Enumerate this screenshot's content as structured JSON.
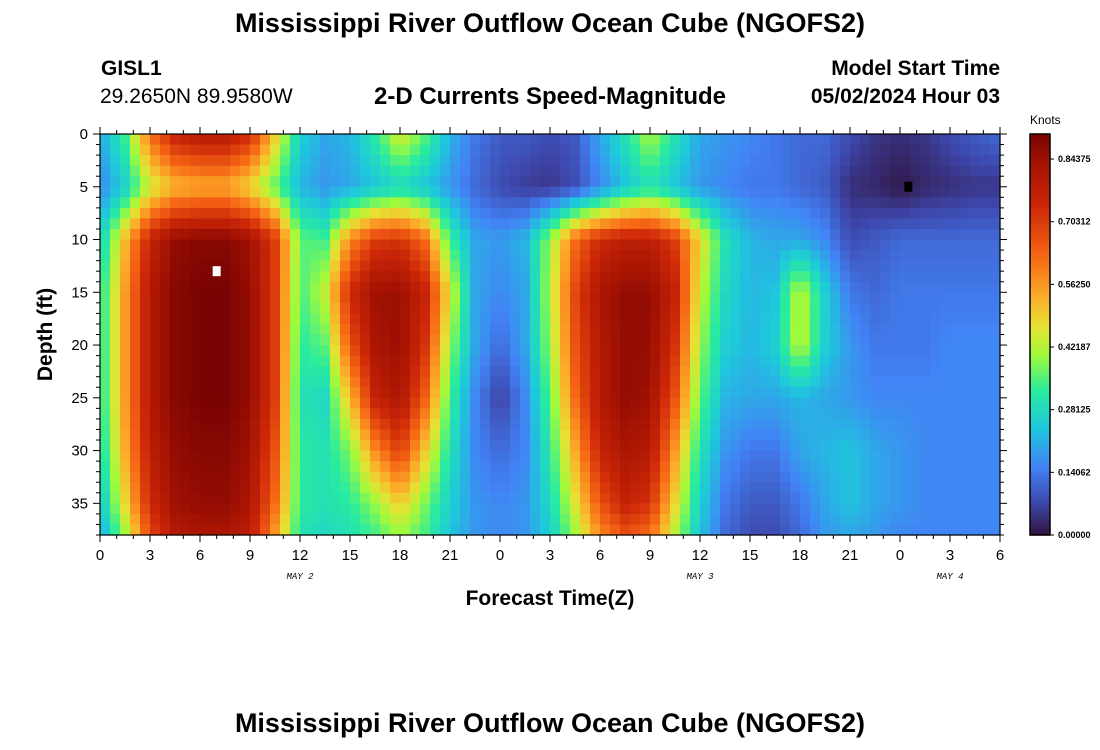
{
  "header": {
    "title": "Mississippi River Outflow Ocean Cube (NGOFS2)",
    "station_id": "GISL1",
    "station_coords": "29.2650N  89.9580W",
    "chart_title": "2-D Currents Speed-Magnitude",
    "model_start_label": "Model Start Time",
    "model_start_value": "05/02/2024 Hour 03"
  },
  "footer": {
    "title": "Mississippi River Outflow Ocean Cube (NGOFS2)"
  },
  "chart_data": {
    "type": "heatmap",
    "xlabel": "Forecast Time(Z)",
    "ylabel": "Depth (ft)",
    "x_unit_hours_range": [
      0,
      54
    ],
    "x_tick_labels": [
      "0",
      "3",
      "6",
      "9",
      "12",
      "15",
      "18",
      "21",
      "0",
      "3",
      "6",
      "9",
      "12",
      "15",
      "18",
      "21",
      "0",
      "3",
      "6"
    ],
    "x_tick_hours": [
      0,
      3,
      6,
      9,
      12,
      15,
      18,
      21,
      24,
      27,
      30,
      33,
      36,
      39,
      42,
      45,
      48,
      51,
      54
    ],
    "day_labels": [
      {
        "label": "MAY 2",
        "hour": 12
      },
      {
        "label": "MAY 3",
        "hour": 36
      },
      {
        "label": "MAY 4",
        "hour": 51
      }
    ],
    "ylim": [
      0,
      38
    ],
    "y_ticks": [
      0,
      5,
      10,
      15,
      20,
      25,
      30,
      35
    ],
    "y_tick_labels": [
      "0",
      "5",
      "10",
      "15",
      "20",
      "25",
      "30",
      "35"
    ],
    "colorbar": {
      "label": "Knots",
      "range": [
        0,
        0.9
      ],
      "ticks": [
        0.0,
        0.140625,
        0.28125,
        0.421875,
        0.5625,
        0.703125,
        0.84375
      ],
      "tick_labels": [
        "0.00000",
        "0.14062",
        "0.28125",
        "0.42187",
        "0.56250",
        "0.70312",
        "0.84375"
      ]
    },
    "markers": [
      {
        "name": "max-marker",
        "hour": 7,
        "depth": 13,
        "color": "#ffffff"
      },
      {
        "name": "min-marker",
        "hour": 48.5,
        "depth": 5,
        "color": "#000000"
      }
    ],
    "speed_knots": {
      "hours": [
        0,
        1.5,
        3,
        4.5,
        6,
        7.5,
        9,
        10.5,
        12,
        13.5,
        15,
        16.5,
        18,
        19.5,
        21,
        22.5,
        24,
        25.5,
        27,
        28.5,
        30,
        31.5,
        33,
        34.5,
        36,
        37.5,
        39,
        40.5,
        42,
        43.5,
        45,
        46.5,
        48,
        49.5,
        51,
        52.5,
        54
      ],
      "depths": [
        0,
        5,
        10,
        15,
        20,
        25,
        30,
        35,
        38
      ],
      "values": [
        [
          0.2,
          0.34,
          0.62,
          0.76,
          0.8,
          0.8,
          0.74,
          0.5,
          0.26,
          0.2,
          0.22,
          0.32,
          0.46,
          0.36,
          0.22,
          0.14,
          0.1,
          0.1,
          0.08,
          0.1,
          0.2,
          0.3,
          0.42,
          0.3,
          0.2,
          0.18,
          0.16,
          0.14,
          0.12,
          0.12,
          0.08,
          0.05,
          0.04,
          0.05,
          0.08,
          0.1,
          0.12
        ],
        [
          0.16,
          0.26,
          0.44,
          0.52,
          0.54,
          0.54,
          0.48,
          0.36,
          0.22,
          0.18,
          0.2,
          0.24,
          0.28,
          0.24,
          0.18,
          0.12,
          0.08,
          0.06,
          0.05,
          0.08,
          0.16,
          0.24,
          0.3,
          0.24,
          0.18,
          0.16,
          0.14,
          0.14,
          0.12,
          0.1,
          0.04,
          0.03,
          0.01,
          0.03,
          0.04,
          0.05,
          0.05
        ],
        [
          0.26,
          0.52,
          0.76,
          0.86,
          0.88,
          0.88,
          0.84,
          0.7,
          0.36,
          0.34,
          0.58,
          0.7,
          0.72,
          0.62,
          0.34,
          0.2,
          0.18,
          0.22,
          0.4,
          0.62,
          0.74,
          0.78,
          0.78,
          0.7,
          0.48,
          0.3,
          0.22,
          0.2,
          0.2,
          0.16,
          0.08,
          0.1,
          0.12,
          0.12,
          0.12,
          0.12,
          0.12
        ],
        [
          0.3,
          0.56,
          0.8,
          0.88,
          0.9,
          0.9,
          0.86,
          0.7,
          0.34,
          0.44,
          0.74,
          0.84,
          0.85,
          0.76,
          0.46,
          0.2,
          0.16,
          0.2,
          0.42,
          0.68,
          0.82,
          0.86,
          0.86,
          0.76,
          0.44,
          0.28,
          0.22,
          0.24,
          0.44,
          0.26,
          0.14,
          0.12,
          0.14,
          0.14,
          0.14,
          0.14,
          0.14
        ],
        [
          0.3,
          0.56,
          0.8,
          0.88,
          0.9,
          0.9,
          0.86,
          0.7,
          0.32,
          0.36,
          0.66,
          0.82,
          0.85,
          0.72,
          0.4,
          0.2,
          0.12,
          0.2,
          0.4,
          0.66,
          0.8,
          0.86,
          0.86,
          0.72,
          0.4,
          0.26,
          0.22,
          0.26,
          0.44,
          0.26,
          0.18,
          0.14,
          0.14,
          0.14,
          0.16,
          0.16,
          0.16
        ],
        [
          0.3,
          0.56,
          0.8,
          0.88,
          0.9,
          0.9,
          0.86,
          0.7,
          0.3,
          0.28,
          0.52,
          0.76,
          0.82,
          0.64,
          0.34,
          0.16,
          0.06,
          0.16,
          0.36,
          0.62,
          0.8,
          0.86,
          0.84,
          0.66,
          0.36,
          0.22,
          0.2,
          0.2,
          0.22,
          0.2,
          0.18,
          0.16,
          0.16,
          0.16,
          0.16,
          0.16,
          0.16
        ],
        [
          0.28,
          0.54,
          0.78,
          0.86,
          0.88,
          0.88,
          0.84,
          0.66,
          0.32,
          0.3,
          0.38,
          0.58,
          0.7,
          0.5,
          0.3,
          0.16,
          0.12,
          0.16,
          0.32,
          0.54,
          0.76,
          0.82,
          0.8,
          0.56,
          0.3,
          0.18,
          0.14,
          0.14,
          0.2,
          0.22,
          0.24,
          0.2,
          0.18,
          0.16,
          0.16,
          0.16,
          0.16
        ],
        [
          0.24,
          0.48,
          0.74,
          0.84,
          0.86,
          0.86,
          0.82,
          0.62,
          0.32,
          0.3,
          0.32,
          0.4,
          0.5,
          0.38,
          0.26,
          0.18,
          0.16,
          0.18,
          0.28,
          0.46,
          0.66,
          0.76,
          0.72,
          0.48,
          0.26,
          0.14,
          0.1,
          0.1,
          0.14,
          0.2,
          0.24,
          0.2,
          0.18,
          0.16,
          0.16,
          0.16,
          0.16
        ],
        [
          0.2,
          0.4,
          0.68,
          0.8,
          0.82,
          0.82,
          0.78,
          0.56,
          0.3,
          0.28,
          0.3,
          0.34,
          0.4,
          0.34,
          0.24,
          0.18,
          0.16,
          0.18,
          0.26,
          0.4,
          0.58,
          0.66,
          0.62,
          0.42,
          0.24,
          0.12,
          0.08,
          0.08,
          0.12,
          0.18,
          0.2,
          0.18,
          0.16,
          0.16,
          0.16,
          0.16,
          0.16
        ]
      ]
    }
  }
}
